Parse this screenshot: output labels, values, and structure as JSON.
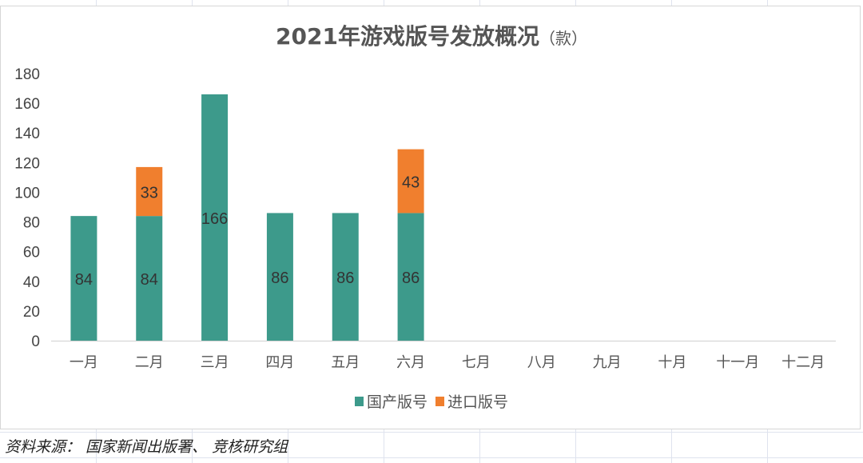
{
  "chart_data": {
    "type": "bar",
    "stacked": true,
    "title": "2021年游戏版号发放概况",
    "title_unit": "（款）",
    "categories": [
      "一月",
      "二月",
      "三月",
      "四月",
      "五月",
      "六月",
      "七月",
      "八月",
      "九月",
      "十月",
      "十一月",
      "十二月"
    ],
    "series": [
      {
        "name": "国产版号",
        "color": "#3d9a8b",
        "values": [
          84,
          84,
          166,
          86,
          86,
          86,
          null,
          null,
          null,
          null,
          null,
          null
        ]
      },
      {
        "name": "进口版号",
        "color": "#f07f2e",
        "values": [
          null,
          33,
          null,
          null,
          null,
          43,
          null,
          null,
          null,
          null,
          null,
          null
        ]
      }
    ],
    "ylim": [
      0,
      180
    ],
    "yticks": [
      0,
      20,
      40,
      60,
      80,
      100,
      120,
      140,
      160,
      180
    ],
    "grid": false,
    "legend": "bottom",
    "data_labels": true
  },
  "source": "资料来源： 国家新闻出版署、 竞核研究组"
}
